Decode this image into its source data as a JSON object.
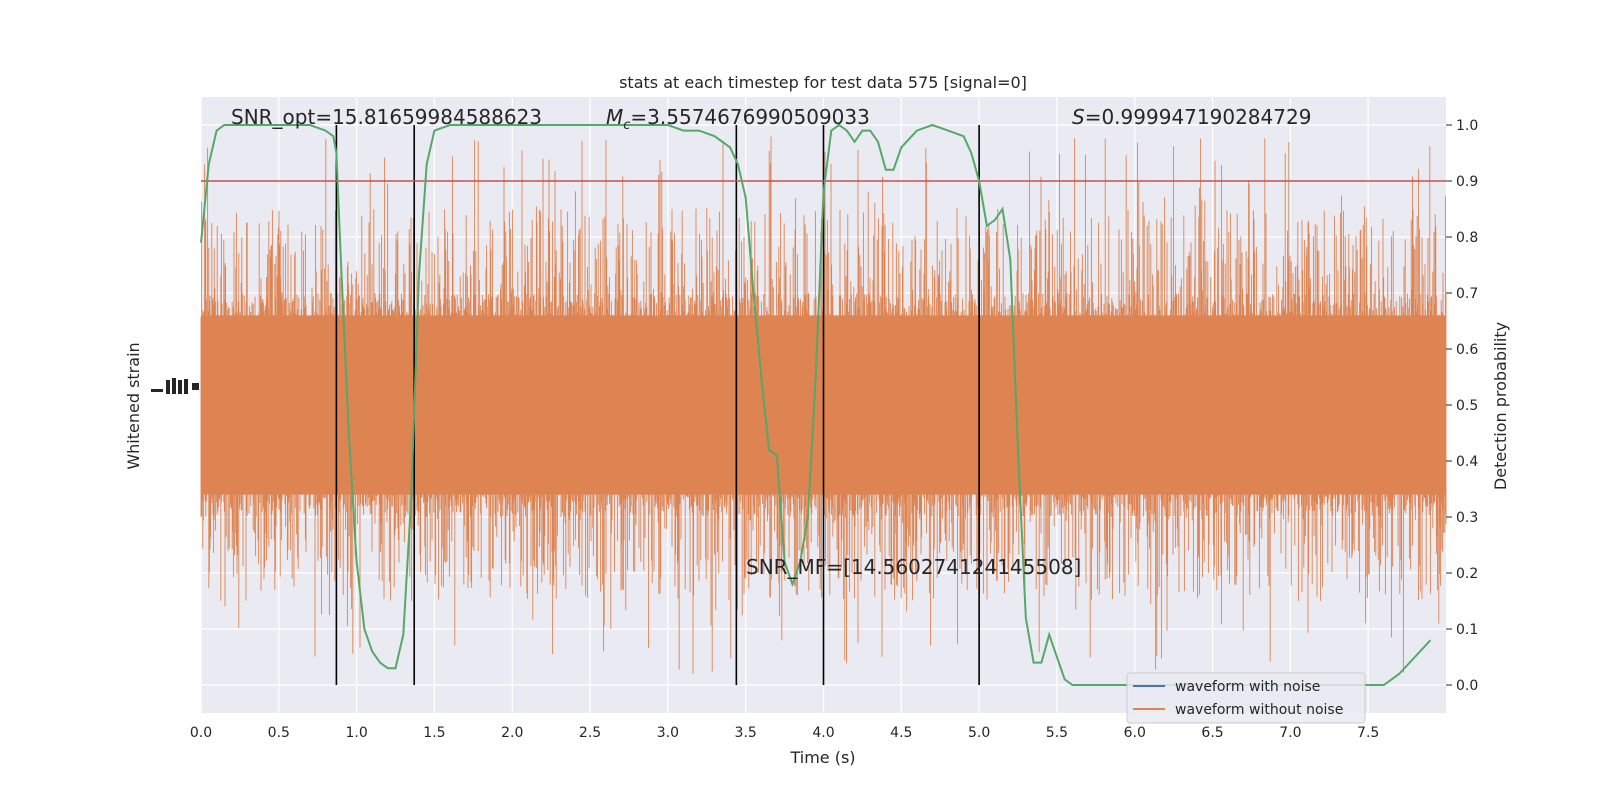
{
  "chart_data": {
    "type": "line",
    "title": "stats at each timestep for test data 575 [signal=0]",
    "xlabel": "Time (s)",
    "ylabel_left": "Whitened strain",
    "ylabel_right": "Detection probability",
    "xlim": [
      0.0,
      8.0
    ],
    "ylim_right": [
      -0.05,
      1.05
    ],
    "x_ticks": [
      "0.0",
      "0.5",
      "1.0",
      "1.5",
      "2.0",
      "2.5",
      "3.0",
      "3.5",
      "4.0",
      "4.5",
      "5.0",
      "5.5",
      "6.0",
      "6.5",
      "7.0",
      "7.5"
    ],
    "y_ticks_right": [
      "0.0",
      "0.1",
      "0.2",
      "0.3",
      "0.4",
      "0.5",
      "0.6",
      "0.7",
      "0.8",
      "0.9",
      "1.0"
    ],
    "grid": true,
    "threshold": 0.9,
    "vertical_lines": [
      0.87,
      1.37,
      3.44,
      4.0,
      5.0
    ],
    "series": [
      {
        "name": "waveform with noise",
        "color": "#4c72b0",
        "kind": "strain",
        "values": []
      },
      {
        "name": "waveform without noise",
        "color": "#dd8452",
        "kind": "strain",
        "band_center": 0.5,
        "band_core_halfwidth": 0.2,
        "spike_max": 0.98,
        "spike_min": 0.02
      },
      {
        "color": "#55a868",
        "kind": "probability",
        "x": [
          0.0,
          0.05,
          0.1,
          0.15,
          0.2,
          0.3,
          0.4,
          0.5,
          0.6,
          0.7,
          0.75,
          0.8,
          0.85,
          0.87,
          0.9,
          0.95,
          1.0,
          1.05,
          1.1,
          1.15,
          1.2,
          1.25,
          1.3,
          1.35,
          1.4,
          1.45,
          1.5,
          1.6,
          1.7,
          2.0,
          2.5,
          3.0,
          3.1,
          3.2,
          3.3,
          3.4,
          3.45,
          3.5,
          3.55,
          3.6,
          3.65,
          3.7,
          3.75,
          3.8,
          3.85,
          3.9,
          3.95,
          4.0,
          4.05,
          4.1,
          4.15,
          4.2,
          4.25,
          4.3,
          4.35,
          4.4,
          4.45,
          4.5,
          4.6,
          4.7,
          4.8,
          4.9,
          4.95,
          5.0,
          5.05,
          5.1,
          5.15,
          5.2,
          5.25,
          5.3,
          5.35,
          5.4,
          5.45,
          5.5,
          5.55,
          5.6,
          5.8,
          6.0,
          6.5,
          7.0,
          7.5,
          7.55,
          7.6,
          7.7,
          7.8,
          7.9
        ],
        "y": [
          0.79,
          0.93,
          0.99,
          1.0,
          1.0,
          1.0,
          1.0,
          1.0,
          1.0,
          1.0,
          0.995,
          0.99,
          0.98,
          0.95,
          0.75,
          0.45,
          0.22,
          0.1,
          0.06,
          0.04,
          0.03,
          0.03,
          0.09,
          0.33,
          0.73,
          0.93,
          0.99,
          1.0,
          1.0,
          1.0,
          1.0,
          1.0,
          0.99,
          0.99,
          0.98,
          0.96,
          0.93,
          0.87,
          0.7,
          0.55,
          0.42,
          0.41,
          0.22,
          0.18,
          0.22,
          0.3,
          0.55,
          0.88,
          0.99,
          1.0,
          0.99,
          0.97,
          0.99,
          0.99,
          0.97,
          0.92,
          0.92,
          0.96,
          0.99,
          1.0,
          0.99,
          0.98,
          0.95,
          0.9,
          0.82,
          0.83,
          0.85,
          0.76,
          0.42,
          0.12,
          0.04,
          0.04,
          0.09,
          0.05,
          0.01,
          0.0,
          0.0,
          0.0,
          0.0,
          0.0,
          0.0,
          0.0,
          0.0,
          0.02,
          0.05,
          0.08
        ]
      },
      {
        "color": "#c44e52",
        "kind": "threshold"
      }
    ],
    "legend": {
      "placement": "lower-right",
      "entries": [
        "waveform with noise",
        "waveform without noise"
      ]
    },
    "annotations": {
      "snr_opt": "SNR_opt=15.81659984588623",
      "mc_symbol": "M",
      "mc_sub": "c",
      "mc_value": "=3.5574676990509033",
      "s_symbol": "S",
      "s_value": "=0.999947190284729",
      "snr_mf": "SNR_MF=[14.560274124145508]"
    }
  }
}
